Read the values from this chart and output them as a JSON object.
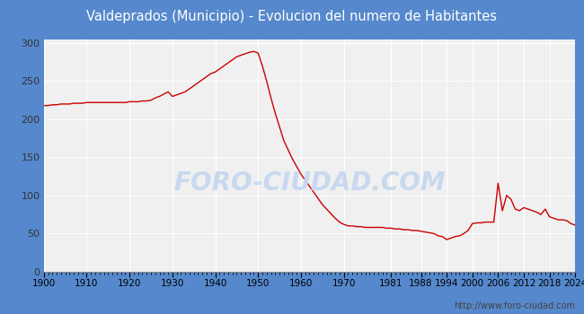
{
  "title": "Valdeprados (Municipio) - Evolucion del numero de Habitantes",
  "title_color": "#ffffff",
  "title_bg_color": "#5588cc",
  "line_color": "#cc0000",
  "outer_bg_color": "#5588cc",
  "plot_bg_color": "#f0f0f0",
  "inner_bg_color": "#f0f0f0",
  "grid_color": "#ffffff",
  "ylabel_ticks": [
    0,
    50,
    100,
    150,
    200,
    250,
    300
  ],
  "ylim": [
    0,
    305
  ],
  "watermark": "FORO-CIUDAD.COM",
  "watermark_color": "#c8d8f0",
  "url_text": "http://www.foro-ciudad.com",
  "years": [
    1900,
    1901,
    1902,
    1903,
    1904,
    1905,
    1906,
    1907,
    1908,
    1909,
    1910,
    1911,
    1912,
    1913,
    1914,
    1915,
    1916,
    1917,
    1918,
    1919,
    1920,
    1921,
    1922,
    1923,
    1924,
    1925,
    1926,
    1927,
    1928,
    1929,
    1930,
    1931,
    1932,
    1933,
    1934,
    1935,
    1936,
    1937,
    1938,
    1939,
    1940,
    1941,
    1942,
    1943,
    1944,
    1945,
    1946,
    1947,
    1948,
    1949,
    1950,
    1951,
    1952,
    1953,
    1954,
    1955,
    1956,
    1957,
    1958,
    1959,
    1960,
    1961,
    1962,
    1963,
    1964,
    1965,
    1966,
    1967,
    1968,
    1969,
    1970,
    1971,
    1972,
    1973,
    1974,
    1975,
    1976,
    1977,
    1978,
    1979,
    1980,
    1981,
    1982,
    1983,
    1984,
    1985,
    1986,
    1987,
    1988,
    1989,
    1990,
    1991,
    1992,
    1993,
    1994,
    1995,
    1996,
    1997,
    1998,
    1999,
    2000,
    2001,
    2002,
    2003,
    2004,
    2005,
    2006,
    2007,
    2008,
    2009,
    2010,
    2011,
    2012,
    2013,
    2014,
    2015,
    2016,
    2017,
    2018,
    2019,
    2020,
    2021,
    2022,
    2023,
    2024
  ],
  "population": [
    218,
    218,
    219,
    219,
    220,
    220,
    220,
    221,
    221,
    221,
    222,
    222,
    222,
    222,
    222,
    222,
    222,
    222,
    222,
    222,
    223,
    223,
    223,
    224,
    224,
    225,
    228,
    230,
    233,
    236,
    230,
    232,
    234,
    236,
    240,
    244,
    248,
    252,
    256,
    260,
    262,
    266,
    270,
    274,
    278,
    282,
    284,
    286,
    288,
    289,
    287,
    270,
    250,
    228,
    208,
    190,
    172,
    160,
    148,
    138,
    128,
    120,
    112,
    104,
    96,
    88,
    82,
    76,
    70,
    65,
    62,
    60,
    60,
    59,
    59,
    58,
    58,
    58,
    58,
    58,
    57,
    57,
    56,
    56,
    55,
    55,
    54,
    54,
    53,
    52,
    51,
    50,
    47,
    46,
    42,
    44,
    46,
    47,
    50,
    54,
    63,
    64,
    64,
    65,
    65,
    65,
    116,
    80,
    100,
    95,
    82,
    80,
    84,
    82,
    80,
    78,
    75,
    82,
    72,
    70,
    68,
    68,
    67,
    63,
    61
  ],
  "xtick_labels": [
    "1900",
    "1910",
    "1920",
    "1930",
    "1940",
    "1950",
    "1960",
    "1970",
    "1981",
    "1988",
    "1994",
    "2000",
    "2006",
    "2012",
    "2018",
    "2024"
  ],
  "xtick_positions": [
    1900,
    1910,
    1920,
    1930,
    1940,
    1950,
    1960,
    1970,
    1981,
    1988,
    1994,
    2000,
    2006,
    2012,
    2018,
    2024
  ]
}
